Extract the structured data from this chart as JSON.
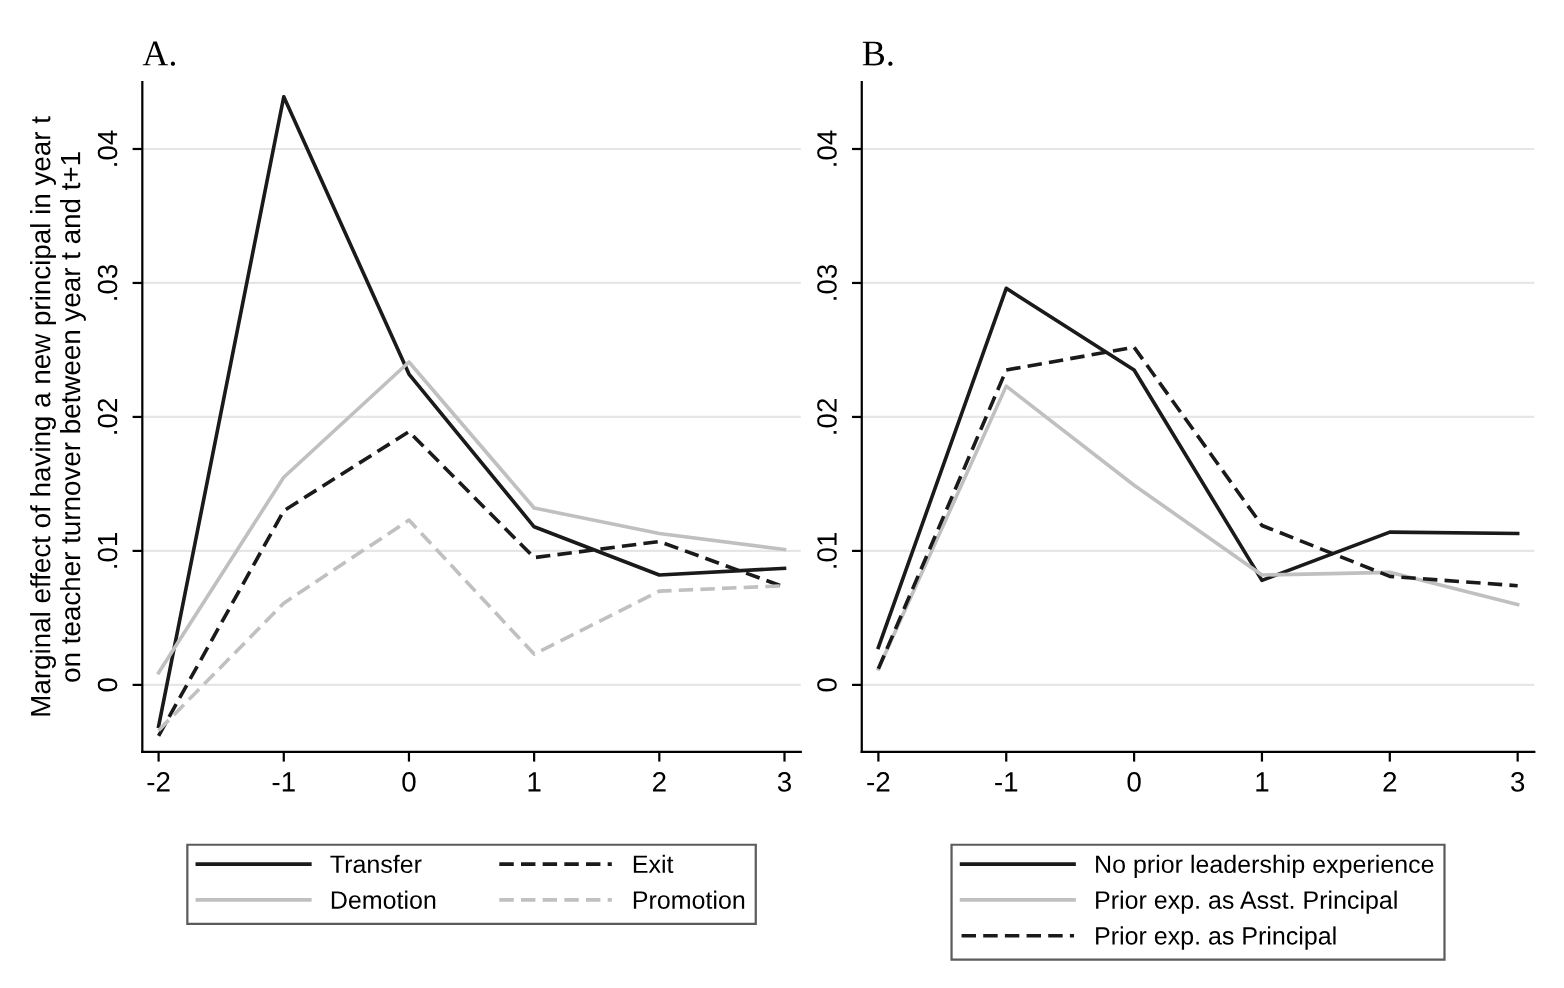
{
  "chart_data": [
    {
      "type": "line",
      "title": "A.",
      "ylabel": "Marginal effect of having a new principal in year t\non teacher turnover between year t and t+1",
      "x": [
        -2,
        -1,
        0,
        1,
        2,
        3
      ],
      "xlim": [
        -2.13,
        3.13
      ],
      "xticks": [
        -2,
        -1,
        0,
        1,
        2,
        3
      ],
      "ylim": [
        -0.005,
        0.045
      ],
      "yticks": [
        {
          "value": 0,
          "label": "0"
        },
        {
          "value": 0.01,
          "label": ".01"
        },
        {
          "value": 0.02,
          "label": ".02"
        },
        {
          "value": 0.03,
          "label": ".03"
        },
        {
          "value": 0.04,
          "label": ".04"
        }
      ],
      "grid": "y",
      "legend": "bottom",
      "marker": "none",
      "series": [
        {
          "name": "Transfer",
          "color": "#1a1a1a",
          "line_style": "solid",
          "values": [
            -0.0031,
            0.0439,
            0.0232,
            0.0118,
            0.0082,
            0.0087
          ]
        },
        {
          "name": "Exit",
          "color": "#1a1a1a",
          "line_style": "dashed",
          "values": [
            -0.0038,
            0.013,
            0.0189,
            0.0095,
            0.0107,
            0.0073
          ]
        },
        {
          "name": "Demotion",
          "color": "#c0c0c0",
          "line_style": "solid",
          "values": [
            0.0009,
            0.0155,
            0.0241,
            0.0132,
            0.0113,
            0.0101
          ]
        },
        {
          "name": "Promotion",
          "color": "#c0c0c0",
          "line_style": "dashed",
          "values": [
            -0.0034,
            0.0061,
            0.0123,
            0.0023,
            0.007,
            0.0074
          ]
        }
      ]
    },
    {
      "type": "line",
      "title": "B.",
      "x": [
        -2,
        -1,
        0,
        1,
        2,
        3
      ],
      "xlim": [
        -2.13,
        3.13
      ],
      "xticks": [
        -2,
        -1,
        0,
        1,
        2,
        3
      ],
      "ylim": [
        -0.005,
        0.045
      ],
      "yticks": [
        {
          "value": 0,
          "label": "0"
        },
        {
          "value": 0.01,
          "label": ".01"
        },
        {
          "value": 0.02,
          "label": ".02"
        },
        {
          "value": 0.03,
          "label": ".03"
        },
        {
          "value": 0.04,
          "label": ".04"
        }
      ],
      "grid": "y",
      "legend": "bottom",
      "marker": "none",
      "series": [
        {
          "name": "No prior leadership experience",
          "color": "#1a1a1a",
          "line_style": "solid",
          "values": [
            0.0028,
            0.0296,
            0.0235,
            0.0078,
            0.0114,
            0.0113
          ]
        },
        {
          "name": "Prior exp. as Asst. Principal",
          "color": "#c0c0c0",
          "line_style": "solid",
          "values": [
            0.0012,
            0.0223,
            0.0149,
            0.0082,
            0.0084,
            0.006
          ]
        },
        {
          "name": "Prior exp. as Principal",
          "color": "#1a1a1a",
          "line_style": "dashed",
          "values": [
            0.0012,
            0.0235,
            0.0252,
            0.0119,
            0.0081,
            0.0074
          ]
        }
      ]
    }
  ]
}
